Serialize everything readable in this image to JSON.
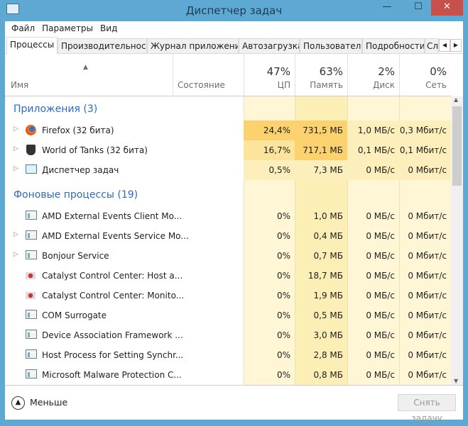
{
  "window": {
    "title": "Диспетчер задач",
    "minimize": "—",
    "maximize": "☐",
    "close": "✕"
  },
  "menu": [
    "Файл",
    "Параметры",
    "Вид"
  ],
  "tabs": [
    "Процессы",
    "Производительность",
    "Журнал приложений",
    "Автозагрузка",
    "Пользователи",
    "Подробности",
    "Сл"
  ],
  "columns": {
    "name": "Имя",
    "status": "Состояние",
    "cpu_pct": "47%",
    "cpu": "ЦП",
    "mem_pct": "63%",
    "mem": "Память",
    "disk_pct": "2%",
    "disk": "Диск",
    "net_pct": "0%",
    "net": "Сеть"
  },
  "groups": {
    "apps": "Приложения (3)",
    "background": "Фоновые процессы (19)"
  },
  "colors": {
    "heat_high": "#fcd26e",
    "heat_mid": "#fde49c",
    "heat_low": "#fdefbb",
    "heat_base": "#fff6d6",
    "heat_mem": "#fcefb5",
    "accent": "#2a6cc0"
  },
  "apps": [
    {
      "name": "Firefox (32 бита)",
      "icon": "firefox-icon",
      "expandable": true,
      "cpu": "24,4%",
      "mem": "731,5 МБ",
      "disk": "1,0 МБ/с",
      "net": "0,3 Мбит/с",
      "heat": [
        "heat_high",
        "heat_high",
        "heat_low",
        "heat_low"
      ]
    },
    {
      "name": "World of Tanks (32 бита)",
      "icon": "world-of-tanks-icon",
      "expandable": true,
      "cpu": "16,7%",
      "mem": "717,1 МБ",
      "disk": "0,1 МБ/с",
      "net": "0,1 Мбит/с",
      "heat": [
        "heat_mid",
        "heat_high",
        "heat_low",
        "heat_low"
      ]
    },
    {
      "name": "Диспетчер задач",
      "icon": "task-manager-icon",
      "expandable": true,
      "cpu": "0,5%",
      "mem": "7,3 МБ",
      "disk": "0 МБ/с",
      "net": "0 Мбит/с",
      "heat": [
        "heat_low",
        "heat_low",
        "heat_low",
        "heat_low"
      ]
    }
  ],
  "background": [
    {
      "name": "AMD External Events Client Mo...",
      "icon": "service-window-icon",
      "expandable": false,
      "cpu": "0%",
      "mem": "1,0 МБ",
      "disk": "0 МБ/с",
      "net": "0 Мбит/с"
    },
    {
      "name": "AMD External Events Service Mo...",
      "icon": "service-window-icon",
      "expandable": true,
      "cpu": "0%",
      "mem": "0,4 МБ",
      "disk": "0 МБ/с",
      "net": "0 Мбит/с"
    },
    {
      "name": "Bonjour Service",
      "icon": "service-window-icon",
      "expandable": true,
      "cpu": "0%",
      "mem": "0,7 МБ",
      "disk": "0 МБ/с",
      "net": "0 Мбит/с"
    },
    {
      "name": "Catalyst Control Center: Host a...",
      "icon": "catalyst-icon",
      "expandable": false,
      "cpu": "0%",
      "mem": "18,7 МБ",
      "disk": "0 МБ/с",
      "net": "0 Мбит/с"
    },
    {
      "name": "Catalyst Control Center: Monito...",
      "icon": "catalyst-icon",
      "expandable": false,
      "cpu": "0%",
      "mem": "1,9 МБ",
      "disk": "0 МБ/с",
      "net": "0 Мбит/с"
    },
    {
      "name": "COM Surrogate",
      "icon": "service-window-icon",
      "expandable": false,
      "cpu": "0%",
      "mem": "0,5 МБ",
      "disk": "0 МБ/с",
      "net": "0 Мбит/с"
    },
    {
      "name": "Device Association Framework ...",
      "icon": "service-window-icon",
      "expandable": false,
      "cpu": "0%",
      "mem": "3,0 МБ",
      "disk": "0 МБ/с",
      "net": "0 Мбит/с"
    },
    {
      "name": "Host Process for Setting Synchr...",
      "icon": "service-window-icon",
      "expandable": false,
      "cpu": "0%",
      "mem": "2,8 МБ",
      "disk": "0 МБ/с",
      "net": "0 Мбит/с"
    },
    {
      "name": "Microsoft Malware Protection C...",
      "icon": "service-window-icon",
      "expandable": false,
      "cpu": "0%",
      "mem": "0,8 МБ",
      "disk": "0 МБ/с",
      "net": "0 Мбит/с"
    }
  ],
  "footer": {
    "less": "Меньше",
    "end_task": "Снять задачу"
  }
}
